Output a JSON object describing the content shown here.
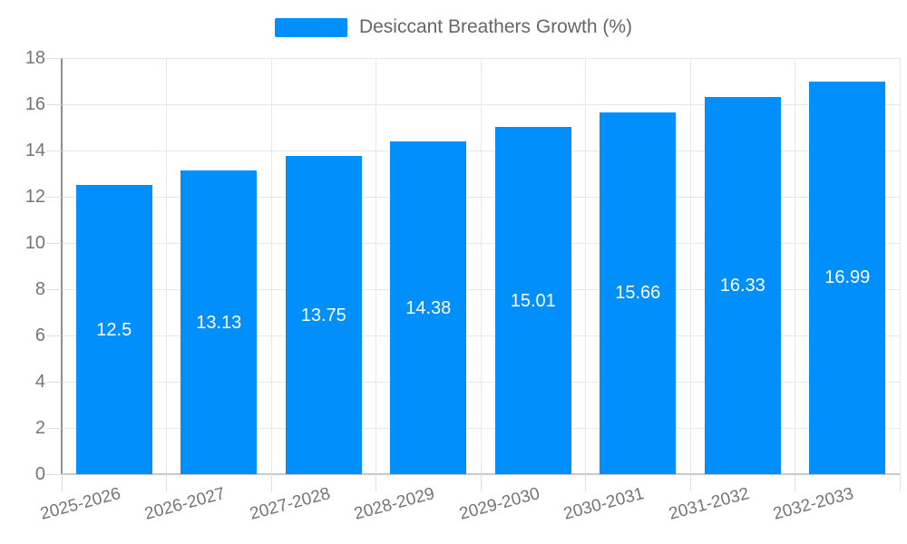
{
  "chart_data": {
    "type": "bar",
    "title": "Desiccant Breathers Growth (%)",
    "categories": [
      "2025-2026",
      "2026-2027",
      "2027-2028",
      "2028-2029",
      "2029-2030",
      "2030-2031",
      "2031-2032",
      "2032-2033"
    ],
    "values": [
      12.5,
      13.13,
      13.75,
      14.38,
      15.01,
      15.66,
      16.33,
      16.99
    ],
    "value_labels": [
      "12.5",
      "13.13",
      "13.75",
      "14.38",
      "15.01",
      "15.66",
      "16.33",
      "16.99"
    ],
    "xlabel": "",
    "ylabel": "",
    "ylim": [
      0,
      18
    ],
    "yticks": [
      0,
      2,
      4,
      6,
      8,
      10,
      12,
      14,
      16,
      18
    ],
    "grid": true,
    "legend": {
      "position": "top",
      "label": "Desiccant Breathers Growth (%)"
    },
    "colors": {
      "bar": "#008FFB",
      "grid": "#e7e7e7",
      "tick": "#e0e0e0",
      "y_axis_line": "#8f8f8f",
      "x_axis_line": "#c9c9c9",
      "tick_label": "#757575",
      "legend_text": "#666666",
      "value_label": "#ffffff",
      "background": "#ffffff"
    }
  }
}
